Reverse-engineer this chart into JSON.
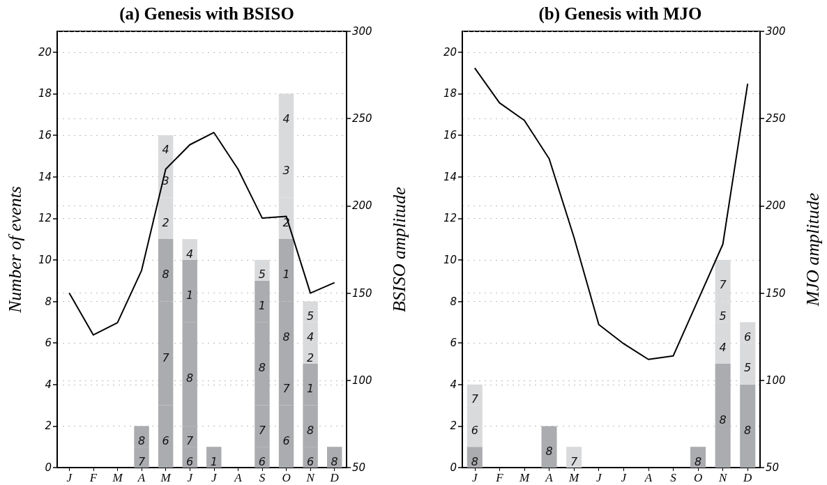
{
  "chart_data": [
    {
      "type": "bar",
      "title": "(a) Genesis with BSISO",
      "ylabel": "Number of events",
      "y2label": "BSISO amplitude",
      "stacked": true,
      "categories": [
        "J",
        "F",
        "M",
        "A",
        "M",
        "J",
        "J",
        "A",
        "S",
        "O",
        "N",
        "D"
      ],
      "ylim": [
        0,
        21
      ],
      "yticks": [
        0,
        2,
        4,
        6,
        8,
        10,
        12,
        14,
        16,
        18,
        20
      ],
      "y2lim": [
        50,
        300
      ],
      "y2ticks": [
        50,
        100,
        150,
        200,
        250,
        300
      ],
      "grid": "y",
      "legend": false,
      "series": [
        {
          "name": "6",
          "color": "#abacaf",
          "values": [
            null,
            null,
            null,
            null,
            3,
            1,
            null,
            null,
            1,
            3,
            1,
            null
          ]
        },
        {
          "name": "7",
          "color": "#abacaf",
          "values": [
            null,
            null,
            null,
            1,
            5,
            1,
            null,
            null,
            2,
            2,
            null,
            null
          ]
        },
        {
          "name": "8",
          "color": "#abacaf",
          "values": [
            null,
            null,
            null,
            1,
            3,
            5,
            null,
            null,
            4,
            3,
            2,
            1
          ]
        },
        {
          "name": "1",
          "color": "#abacaf",
          "values": [
            null,
            null,
            null,
            null,
            null,
            3,
            1,
            null,
            2,
            3,
            2,
            null
          ]
        },
        {
          "name": "2",
          "color": "#d9dadc",
          "values": [
            null,
            null,
            null,
            null,
            2,
            null,
            null,
            null,
            null,
            2,
            1,
            null
          ]
        },
        {
          "name": "3",
          "color": "#d9dadc",
          "values": [
            null,
            null,
            null,
            null,
            2,
            null,
            null,
            null,
            null,
            3,
            null,
            null
          ]
        },
        {
          "name": "4",
          "color": "#d9dadc",
          "values": [
            null,
            null,
            null,
            null,
            1,
            1,
            null,
            null,
            null,
            2,
            1,
            null
          ]
        },
        {
          "name": "5",
          "color": "#d9dadc",
          "values": [
            null,
            null,
            null,
            null,
            null,
            null,
            null,
            null,
            1,
            null,
            1,
            null
          ]
        },
        {
          "type": "line",
          "axis": "y2",
          "color": "#000000",
          "marker": "none",
          "line_style": "solid",
          "values": [
            150,
            126,
            133,
            163,
            221,
            235,
            242,
            221,
            193,
            194,
            150,
            156
          ]
        }
      ]
    },
    {
      "type": "bar",
      "title": "(b) Genesis with MJO",
      "y2label": "MJO amplitude",
      "stacked": true,
      "categories": [
        "J",
        "F",
        "M",
        "A",
        "M",
        "J",
        "J",
        "A",
        "S",
        "O",
        "N",
        "D"
      ],
      "ylim": [
        0,
        21
      ],
      "yticks": [
        0,
        2,
        4,
        6,
        8,
        10,
        12,
        14,
        16,
        18,
        20
      ],
      "y2lim": [
        50,
        300
      ],
      "y2ticks": [
        50,
        100,
        150,
        200,
        250,
        300
      ],
      "grid": "y",
      "legend": false,
      "series": [
        {
          "name": "8",
          "color": "#abacaf",
          "values": [
            1,
            null,
            null,
            2,
            null,
            null,
            null,
            null,
            null,
            1,
            5,
            4
          ]
        },
        {
          "name": "4",
          "color": "#d9dadc",
          "values": [
            null,
            null,
            null,
            null,
            null,
            null,
            null,
            null,
            null,
            null,
            2,
            null
          ]
        },
        {
          "name": "5",
          "color": "#d9dadc",
          "values": [
            null,
            null,
            null,
            null,
            null,
            null,
            null,
            null,
            null,
            null,
            1,
            2
          ]
        },
        {
          "name": "6",
          "color": "#d9dadc",
          "values": [
            2,
            null,
            null,
            null,
            null,
            null,
            null,
            null,
            null,
            null,
            null,
            1
          ]
        },
        {
          "name": "7",
          "color": "#d9dadc",
          "values": [
            1,
            null,
            null,
            null,
            1,
            null,
            null,
            null,
            null,
            null,
            2,
            null
          ]
        },
        {
          "type": "line",
          "axis": "y2",
          "color": "#000000",
          "marker": "none",
          "line_style": "solid",
          "values": [
            279,
            259,
            249,
            227,
            182,
            132,
            121,
            112,
            114,
            146,
            178,
            270
          ]
        }
      ]
    }
  ]
}
